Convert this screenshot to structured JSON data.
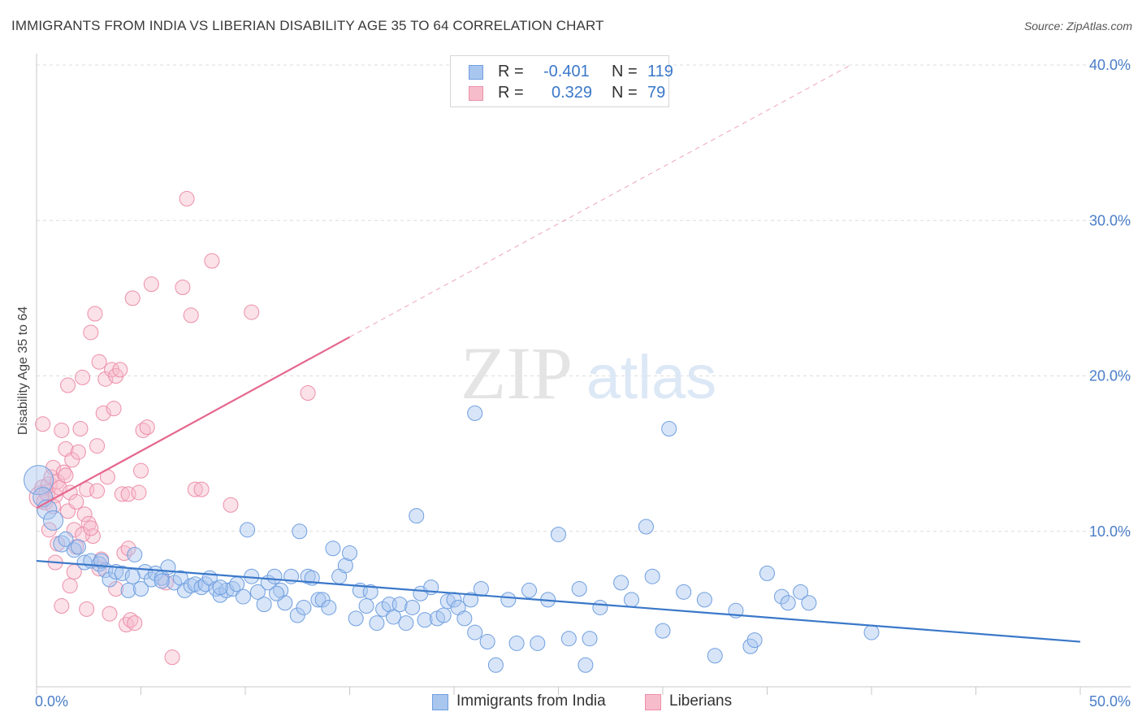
{
  "title": "IMMIGRANTS FROM INDIA VS LIBERIAN DISABILITY AGE 35 TO 64 CORRELATION CHART",
  "source": "Source: ZipAtlas.com",
  "watermark": {
    "zip": "ZIP",
    "atlas": "atlas"
  },
  "legend": {
    "r_label": "R =",
    "n_label": "N =",
    "india": {
      "r": "-0.401",
      "n": "119"
    },
    "liberia": {
      "r": "0.329",
      "n": "79"
    }
  },
  "bottom_legend": {
    "india": "Immigrants from India",
    "liberia": "Liberians"
  },
  "colors": {
    "india_fill": "#a9c6ef",
    "india_stroke": "#6f9fe0",
    "india_line": "#3a78c9",
    "liberia_fill": "#f7bccb",
    "liberia_stroke": "#ec8fa9",
    "liberia_line": "#e5678e",
    "tick_text": "#4a7ec9",
    "grid": "#dcdcdc"
  },
  "chart_data": {
    "type": "scatter",
    "xlabel": "",
    "ylabel": "Disability Age 35 to 64",
    "xlim": [
      0,
      50
    ],
    "ylim": [
      0,
      40
    ],
    "x_tick_labels": [
      "0.0%",
      "50.0%"
    ],
    "y_ticks": [
      10,
      20,
      30,
      40
    ],
    "y_tick_labels": [
      "10.0%",
      "20.0%",
      "30.0%",
      "40.0%"
    ],
    "grid": true,
    "legend_position": "top-center",
    "series": [
      {
        "name": "Immigrants from India",
        "trend": {
          "x": [
            0,
            50
          ],
          "y": [
            8.1,
            2.9
          ]
        },
        "points": [
          [
            0.1,
            13.3,
            18
          ],
          [
            0.3,
            12.2,
            12
          ],
          [
            0.5,
            11.4,
            12
          ],
          [
            0.8,
            10.7,
            12
          ],
          [
            1.2,
            9.2,
            10
          ],
          [
            1.4,
            9.5,
            9
          ],
          [
            1.8,
            8.8,
            9
          ],
          [
            2.0,
            9.0,
            9
          ],
          [
            2.3,
            8.0,
            9
          ],
          [
            2.6,
            8.1,
            9
          ],
          [
            3.0,
            7.9,
            9
          ],
          [
            3.3,
            7.5,
            9
          ],
          [
            3.5,
            6.9,
            9
          ],
          [
            3.8,
            7.4,
            9
          ],
          [
            4.1,
            7.3,
            9
          ],
          [
            4.4,
            6.2,
            9
          ],
          [
            4.7,
            8.5,
            9
          ],
          [
            5.0,
            6.3,
            9
          ],
          [
            5.2,
            7.4,
            9
          ],
          [
            5.5,
            6.9,
            9
          ],
          [
            5.7,
            7.3,
            9
          ],
          [
            6.0,
            7.0,
            9
          ],
          [
            6.3,
            7.7,
            9
          ],
          [
            6.6,
            6.7,
            9
          ],
          [
            6.9,
            7.0,
            9
          ],
          [
            7.1,
            6.2,
            9
          ],
          [
            7.4,
            6.5,
            9
          ],
          [
            7.6,
            6.6,
            9
          ],
          [
            7.9,
            6.4,
            9
          ],
          [
            8.1,
            6.6,
            9
          ],
          [
            8.3,
            7.0,
            9
          ],
          [
            8.6,
            6.3,
            9
          ],
          [
            8.8,
            5.9,
            9
          ],
          [
            9.1,
            6.2,
            9
          ],
          [
            9.4,
            6.3,
            9
          ],
          [
            9.6,
            6.6,
            9
          ],
          [
            9.9,
            5.8,
            9
          ],
          [
            10.1,
            10.1,
            9
          ],
          [
            10.3,
            7.1,
            9
          ],
          [
            10.6,
            6.1,
            9
          ],
          [
            10.9,
            5.3,
            9
          ],
          [
            11.1,
            6.7,
            9
          ],
          [
            11.4,
            7.1,
            9
          ],
          [
            11.7,
            6.2,
            9
          ],
          [
            11.9,
            5.4,
            9
          ],
          [
            12.2,
            7.1,
            9
          ],
          [
            12.5,
            4.6,
            9
          ],
          [
            12.8,
            5.1,
            9
          ],
          [
            13.0,
            7.1,
            9
          ],
          [
            13.2,
            7.0,
            9
          ],
          [
            13.5,
            5.6,
            9
          ],
          [
            13.7,
            5.6,
            9
          ],
          [
            14.0,
            5.1,
            9
          ],
          [
            14.2,
            8.9,
            9
          ],
          [
            14.5,
            7.1,
            9
          ],
          [
            14.8,
            7.8,
            9
          ],
          [
            15.0,
            8.6,
            9
          ],
          [
            15.3,
            4.4,
            9
          ],
          [
            15.5,
            6.2,
            9
          ],
          [
            15.8,
            5.2,
            9
          ],
          [
            16.0,
            6.1,
            9
          ],
          [
            16.3,
            4.1,
            9
          ],
          [
            16.6,
            5.0,
            9
          ],
          [
            16.9,
            5.3,
            9
          ],
          [
            17.1,
            4.5,
            9
          ],
          [
            17.4,
            5.3,
            9
          ],
          [
            17.7,
            4.1,
            9
          ],
          [
            18.0,
            5.1,
            9
          ],
          [
            18.2,
            11.0,
            9
          ],
          [
            18.4,
            6.0,
            9
          ],
          [
            18.6,
            4.3,
            9
          ],
          [
            18.9,
            6.4,
            9
          ],
          [
            19.2,
            4.4,
            9
          ],
          [
            19.5,
            4.6,
            9
          ],
          [
            19.7,
            5.5,
            9
          ],
          [
            20.0,
            5.6,
            9
          ],
          [
            20.2,
            5.1,
            9
          ],
          [
            20.5,
            4.4,
            9
          ],
          [
            20.8,
            5.6,
            9
          ],
          [
            21.0,
            3.5,
            9
          ],
          [
            21.3,
            6.3,
            9
          ],
          [
            21.6,
            2.9,
            9
          ],
          [
            22.0,
            1.4,
            9
          ],
          [
            22.6,
            5.6,
            9
          ],
          [
            23.0,
            2.8,
            9
          ],
          [
            23.6,
            6.2,
            9
          ],
          [
            24.0,
            2.8,
            9
          ],
          [
            24.5,
            5.6,
            9
          ],
          [
            25.0,
            9.8,
            9
          ],
          [
            25.5,
            3.1,
            9
          ],
          [
            26.0,
            6.3,
            9
          ],
          [
            26.3,
            1.4,
            9
          ],
          [
            26.5,
            3.1,
            9
          ],
          [
            27.0,
            5.1,
            9
          ],
          [
            28.0,
            6.7,
            9
          ],
          [
            28.5,
            5.6,
            9
          ],
          [
            29.2,
            10.3,
            9
          ],
          [
            29.5,
            7.1,
            9
          ],
          [
            30.0,
            3.6,
            9
          ],
          [
            30.3,
            16.6,
            9
          ],
          [
            31.0,
            6.1,
            9
          ],
          [
            32.0,
            5.6,
            9
          ],
          [
            32.5,
            2.0,
            9
          ],
          [
            33.5,
            4.9,
            9
          ],
          [
            34.2,
            2.6,
            9
          ],
          [
            34.4,
            3.0,
            9
          ],
          [
            35.0,
            7.3,
            9
          ],
          [
            35.7,
            5.8,
            9
          ],
          [
            36.0,
            5.4,
            9
          ],
          [
            36.6,
            6.1,
            9
          ],
          [
            37.0,
            5.4,
            9
          ],
          [
            40.0,
            3.5,
            9
          ],
          [
            21.0,
            17.6,
            9
          ],
          [
            11.5,
            6.0,
            9
          ],
          [
            8.8,
            6.4,
            9
          ],
          [
            6.0,
            6.8,
            9
          ],
          [
            4.6,
            7.1,
            9
          ],
          [
            3.1,
            8.1,
            9
          ],
          [
            12.6,
            10.0,
            9
          ]
        ]
      },
      {
        "name": "Liberians",
        "trend": {
          "x": [
            0,
            15
          ],
          "y": [
            11.5,
            22.5
          ]
        },
        "trend_extension": {
          "x": [
            15,
            39
          ],
          "y": [
            22.5,
            40.0
          ]
        },
        "points": [
          [
            0.2,
            12.2,
            14
          ],
          [
            0.3,
            12.8,
            10
          ],
          [
            0.4,
            11.9,
            10
          ],
          [
            0.5,
            12.5,
            10
          ],
          [
            0.6,
            13.0,
            10
          ],
          [
            0.6,
            10.1,
            9
          ],
          [
            0.7,
            13.5,
            9
          ],
          [
            0.8,
            14.1,
            9
          ],
          [
            0.9,
            12.3,
            9
          ],
          [
            1.0,
            13.2,
            9
          ],
          [
            1.0,
            9.2,
            9
          ],
          [
            1.1,
            12.8,
            9
          ],
          [
            1.2,
            16.5,
            9
          ],
          [
            1.3,
            13.8,
            9
          ],
          [
            1.4,
            15.3,
            9
          ],
          [
            1.5,
            19.4,
            9
          ],
          [
            1.5,
            11.3,
            9
          ],
          [
            1.6,
            12.5,
            9
          ],
          [
            1.7,
            14.6,
            9
          ],
          [
            1.8,
            10.1,
            9
          ],
          [
            1.9,
            9.0,
            9
          ],
          [
            2.0,
            15.1,
            9
          ],
          [
            2.1,
            16.6,
            9
          ],
          [
            2.2,
            19.9,
            9
          ],
          [
            2.3,
            11.1,
            9
          ],
          [
            2.4,
            12.7,
            9
          ],
          [
            2.5,
            10.5,
            9
          ],
          [
            2.6,
            22.8,
            9
          ],
          [
            2.7,
            9.7,
            9
          ],
          [
            2.8,
            24.0,
            9
          ],
          [
            2.9,
            15.5,
            9
          ],
          [
            3.0,
            20.9,
            9
          ],
          [
            3.1,
            8.2,
            9
          ],
          [
            3.2,
            17.6,
            9
          ],
          [
            3.3,
            19.8,
            9
          ],
          [
            3.4,
            13.5,
            9
          ],
          [
            3.5,
            4.7,
            9
          ],
          [
            3.6,
            20.4,
            9
          ],
          [
            3.7,
            17.9,
            9
          ],
          [
            3.8,
            20.0,
            9
          ],
          [
            4.0,
            20.4,
            9
          ],
          [
            4.1,
            12.4,
            9
          ],
          [
            4.2,
            8.6,
            9
          ],
          [
            4.3,
            4.0,
            9
          ],
          [
            4.4,
            12.4,
            9
          ],
          [
            4.5,
            4.3,
            9
          ],
          [
            4.6,
            25.0,
            9
          ],
          [
            4.7,
            4.1,
            9
          ],
          [
            5.0,
            13.9,
            9
          ],
          [
            5.1,
            16.5,
            9
          ],
          [
            5.3,
            16.7,
            9
          ],
          [
            5.5,
            25.9,
            9
          ],
          [
            6.2,
            6.7,
            9
          ],
          [
            7.0,
            25.7,
            9
          ],
          [
            7.2,
            31.4,
            9
          ],
          [
            7.4,
            23.9,
            9
          ],
          [
            7.6,
            12.7,
            9
          ],
          [
            7.9,
            12.7,
            9
          ],
          [
            8.4,
            27.4,
            9
          ],
          [
            9.3,
            11.7,
            9
          ],
          [
            10.3,
            24.1,
            9
          ],
          [
            13.0,
            18.9,
            9
          ],
          [
            1.2,
            5.2,
            9
          ],
          [
            1.8,
            7.4,
            9
          ],
          [
            2.4,
            5.0,
            9
          ],
          [
            0.9,
            8.0,
            9
          ],
          [
            1.6,
            6.5,
            9
          ],
          [
            2.2,
            9.8,
            9
          ],
          [
            3.0,
            7.6,
            9
          ],
          [
            3.8,
            6.3,
            9
          ],
          [
            4.4,
            8.9,
            9
          ],
          [
            2.6,
            10.2,
            9
          ],
          [
            1.9,
            11.9,
            9
          ],
          [
            1.4,
            13.6,
            9
          ],
          [
            0.3,
            16.9,
            9
          ],
          [
            2.9,
            12.6,
            9
          ],
          [
            4.9,
            12.5,
            9
          ],
          [
            6.5,
            1.9,
            9
          ],
          [
            0.8,
            11.6,
            9
          ]
        ]
      }
    ]
  }
}
